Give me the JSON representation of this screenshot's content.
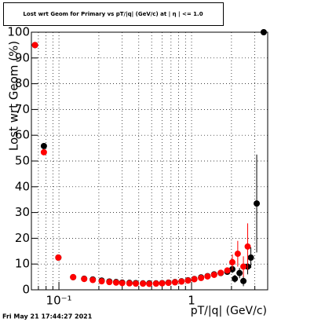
{
  "chart_data": {
    "type": "scatter",
    "title": "Lost wrt Geom for Primary vs pT/|q| (GeV/c) at | η | <= 1.0",
    "x_label": "pT/|q| (GeV/c)",
    "y_label": "Lost wrt Geom (%)",
    "footer": "Fri May 21 17:44:27 2021",
    "xlog": true,
    "grid": true,
    "xlim": [
      0.062,
      3.75
    ],
    "ylim": [
      0,
      100
    ],
    "xticks": [
      {
        "value": 0.1,
        "label": "10⁻¹"
      },
      1
    ],
    "xminorticks": [
      0.07,
      0.08,
      0.09,
      0.2,
      0.3,
      0.4,
      0.5,
      0.6,
      0.7,
      0.8,
      0.9,
      2,
      3
    ],
    "yticks": [
      0,
      10,
      20,
      30,
      40,
      50,
      60,
      70,
      80,
      90,
      100
    ],
    "series": [
      {
        "color": "#000000",
        "x": [
          0.066,
          0.077,
          0.099,
          0.128,
          0.155,
          0.18,
          0.21,
          0.24,
          0.27,
          0.3,
          0.34,
          0.38,
          0.43,
          0.48,
          0.54,
          0.6,
          0.67,
          0.75,
          0.84,
          0.94,
          1.05,
          1.18,
          1.32,
          1.48,
          1.66,
          1.86,
          2.03,
          2.12,
          2.3,
          2.46,
          2.65,
          2.8,
          3.1,
          3.5
        ],
        "values": [
          95,
          55.8,
          12.5,
          4.9,
          4.3,
          4,
          3.6,
          3.2,
          3,
          2.8,
          2.7,
          2.6,
          2.5,
          2.5,
          2.5,
          2.6,
          2.8,
          3,
          3.3,
          3.7,
          4.2,
          4.8,
          5.3,
          6,
          6.5,
          7,
          8,
          4.3,
          6.5,
          3.4,
          9,
          12.5,
          33.5,
          100
        ],
        "errors": [
          1,
          1,
          0.8,
          0.3,
          0.3,
          0.3,
          0.2,
          0.2,
          0.2,
          0.2,
          0.2,
          0.2,
          0.2,
          0.2,
          0.2,
          0.2,
          0.2,
          0.2,
          0.2,
          0.3,
          0.3,
          0.4,
          0.5,
          0.6,
          0.8,
          1,
          1.5,
          1.5,
          2,
          2,
          3,
          4,
          19,
          0
        ]
      },
      {
        "color": "#ff0000",
        "x": [
          0.066,
          0.077,
          0.099,
          0.128,
          0.155,
          0.18,
          0.21,
          0.24,
          0.27,
          0.3,
          0.34,
          0.38,
          0.43,
          0.48,
          0.54,
          0.6,
          0.67,
          0.75,
          0.84,
          0.94,
          1.05,
          1.18,
          1.32,
          1.48,
          1.66,
          1.86,
          2.03,
          2.23,
          2.46,
          2.65
        ],
        "values": [
          95,
          53.4,
          12.5,
          4.9,
          4.2,
          3.8,
          3.3,
          3,
          2.8,
          2.6,
          2.5,
          2.4,
          2.4,
          2.3,
          2.4,
          2.5,
          2.7,
          2.9,
          3.2,
          3.6,
          4.1,
          4.6,
          5.2,
          5.8,
          6.6,
          7.5,
          10.7,
          14,
          9,
          16.8
        ],
        "errors": [
          1,
          1,
          0.8,
          0.3,
          0.3,
          0.3,
          0.2,
          0.2,
          0.2,
          0.2,
          0.2,
          0.2,
          0.2,
          0.2,
          0.2,
          0.2,
          0.2,
          0.2,
          0.2,
          0.3,
          0.3,
          0.4,
          0.5,
          0.6,
          0.8,
          1,
          3,
          5,
          4,
          9
        ]
      }
    ]
  }
}
